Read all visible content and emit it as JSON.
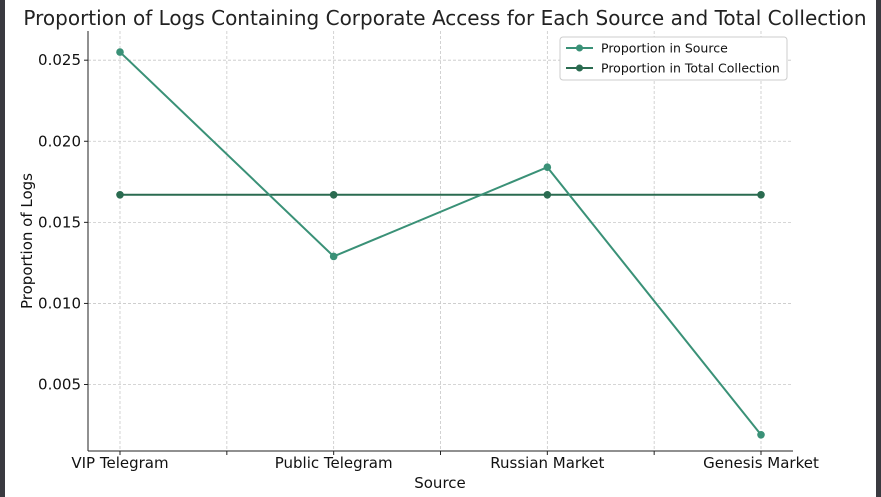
{
  "chart_data": {
    "type": "line",
    "title": "Proportion of Logs Containing Corporate Access for Each Source and Total Collection",
    "xlabel": "Source",
    "ylabel": "Proportion of Logs",
    "categories": [
      "VIP Telegram",
      "Public Telegram",
      "Russian Market",
      "Genesis Market"
    ],
    "series": [
      {
        "name": "Proportion in Source",
        "values": [
          0.0255,
          0.0129,
          0.0184,
          0.0019
        ],
        "color": "#3a9177"
      },
      {
        "name": "Proportion in Total Collection",
        "values": [
          0.0167,
          0.0167,
          0.0167,
          0.0167
        ],
        "color": "#2a6b50"
      }
    ],
    "yticks": [
      "0.005",
      "0.010",
      "0.015",
      "0.020",
      "0.025"
    ],
    "ylim": [
      0.0009,
      0.0268
    ],
    "grid": true,
    "legend": "top-right"
  }
}
